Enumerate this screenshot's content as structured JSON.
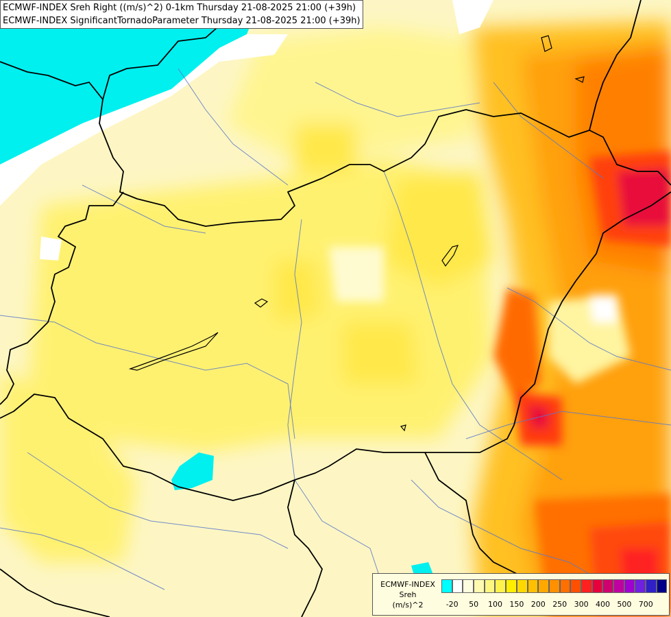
{
  "title": {
    "line1": "ECMWF-INDEX Sreh Right ((m/s)^2) 0-1km Thursday 21-08-2025 21:00 (+39h)",
    "line2": "ECMWF-INDEX SignificantTornadoParameter Thursday 21-08-2025 21:00 (+39h)"
  },
  "legend": {
    "line1": "ECMWF-INDEX",
    "line2": "Sreh",
    "line3": "(m/s)^2",
    "colors": [
      "#00ffff",
      "#ffffff",
      "#fffde0",
      "#fffab0",
      "#fff680",
      "#fff24c",
      "#ffee00",
      "#ffd800",
      "#ffc000",
      "#ffa800",
      "#ff9000",
      "#ff7000",
      "#ff5000",
      "#ff2020",
      "#e8003c",
      "#d0006e",
      "#c000a0",
      "#a000d0",
      "#7020e0",
      "#3020c8",
      "#000088"
    ],
    "ticks": [
      {
        "label": "-20",
        "index": 1
      },
      {
        "label": "50",
        "index": 3
      },
      {
        "label": "100",
        "index": 5
      },
      {
        "label": "150",
        "index": 7
      },
      {
        "label": "200",
        "index": 9
      },
      {
        "label": "250",
        "index": 11
      },
      {
        "label": "300",
        "index": 13
      },
      {
        "label": "400",
        "index": 15
      },
      {
        "label": "500",
        "index": 17
      },
      {
        "label": "700",
        "index": 19
      }
    ]
  }
}
